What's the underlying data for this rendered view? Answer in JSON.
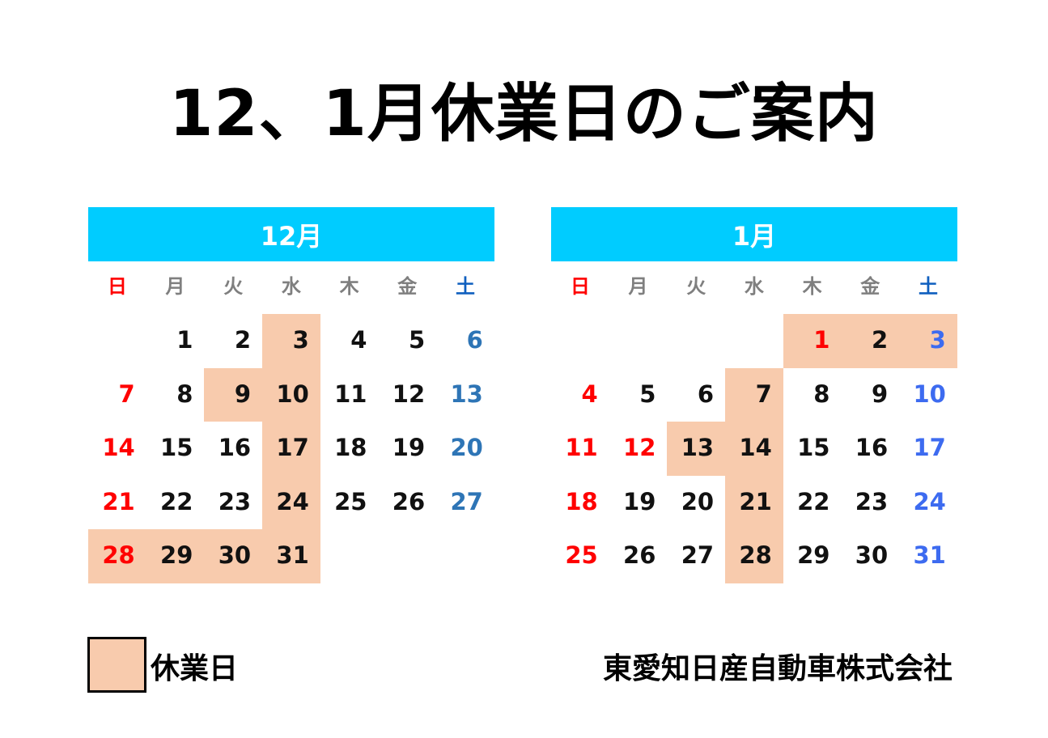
{
  "title": "12、1月休業日のご案内",
  "weekdays": [
    "日",
    "月",
    "火",
    "水",
    "木",
    "金",
    "土"
  ],
  "colors": {
    "header": "#00CCFF",
    "holiday_fill": "#F8CBAD",
    "sunday": "#FF0000",
    "saturday_header": "#0F5FBF"
  },
  "months": [
    {
      "label": "12月",
      "saturday_color": "#2E75B6",
      "weeks": [
        [
          "",
          "1",
          "2",
          "3",
          "4",
          "5",
          "6"
        ],
        [
          "7",
          "8",
          "9",
          "10",
          "11",
          "12",
          "13"
        ],
        [
          "14",
          "15",
          "16",
          "17",
          "18",
          "19",
          "20"
        ],
        [
          "21",
          "22",
          "23",
          "24",
          "25",
          "26",
          "27"
        ],
        [
          "28",
          "29",
          "30",
          "31",
          "",
          "",
          ""
        ]
      ],
      "off": [
        "3",
        "9",
        "10",
        "17",
        "24",
        "28",
        "29",
        "30",
        "31"
      ],
      "red": []
    },
    {
      "label": "1月",
      "saturday_color": "#3D6BF0",
      "weeks": [
        [
          "",
          "",
          "",
          "",
          "1",
          "2",
          "3"
        ],
        [
          "4",
          "5",
          "6",
          "7",
          "8",
          "9",
          "10"
        ],
        [
          "11",
          "12",
          "13",
          "14",
          "15",
          "16",
          "17"
        ],
        [
          "18",
          "19",
          "20",
          "21",
          "22",
          "23",
          "24"
        ],
        [
          "25",
          "26",
          "27",
          "28",
          "29",
          "30",
          "31"
        ]
      ],
      "off": [
        "1",
        "2",
        "3",
        "7",
        "13",
        "14",
        "21",
        "28"
      ],
      "red": [
        "1",
        "12"
      ]
    }
  ],
  "legend": {
    "label": "休業日"
  },
  "company": "東愛知日産自動車株式会社"
}
